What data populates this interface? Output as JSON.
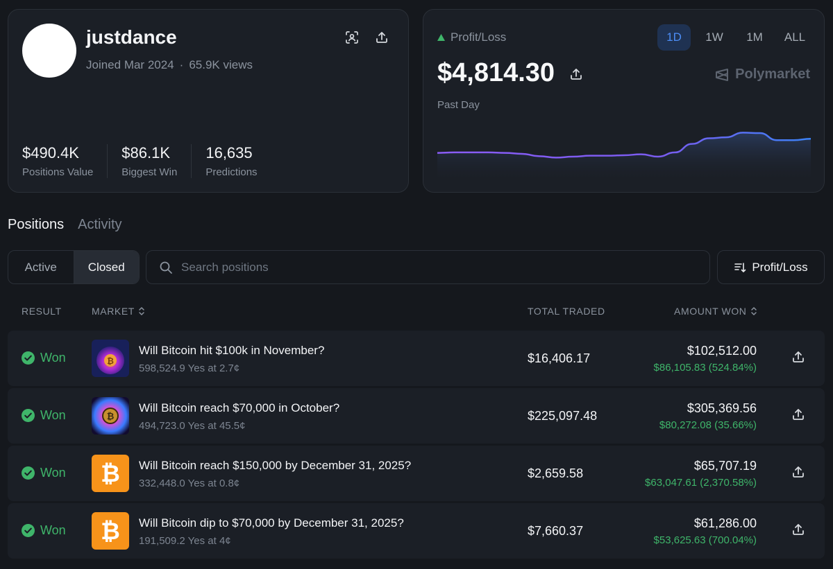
{
  "profile": {
    "username": "justdance",
    "joined": "Joined Mar 2024",
    "separator": "·",
    "views": "65.9K views",
    "stats": [
      {
        "value": "$490.4K",
        "label": "Positions Value"
      },
      {
        "value": "$86.1K",
        "label": "Biggest Win"
      },
      {
        "value": "16,635",
        "label": "Predictions"
      }
    ]
  },
  "pnl": {
    "label": "Profit/Loss",
    "value": "$4,814.30",
    "period": "Past Day",
    "brand": "Polymarket",
    "ranges": [
      "1D",
      "1W",
      "1M",
      "ALL"
    ],
    "active_range": "1D",
    "chart_data": {
      "type": "area",
      "y": [
        0.55,
        0.56,
        0.56,
        0.56,
        0.55,
        0.53,
        0.48,
        0.45,
        0.47,
        0.49,
        0.49,
        0.5,
        0.52,
        0.47,
        0.56,
        0.74,
        0.86,
        0.88,
        0.98,
        0.97,
        0.82,
        0.82,
        0.85
      ],
      "color_start": "#8a5cf6",
      "color_end": "#3b82f6"
    }
  },
  "tabs": [
    "Positions",
    "Activity"
  ],
  "filter": {
    "active": "Active",
    "closed": "Closed"
  },
  "search": {
    "placeholder": "Search positions"
  },
  "sort": {
    "label": "Profit/Loss"
  },
  "table": {
    "headers": {
      "result": "RESULT",
      "market": "MARKET",
      "traded": "TOTAL TRADED",
      "won": "AMOUNT WON"
    },
    "rows": [
      {
        "result": "Won",
        "title": "Will Bitcoin hit $100k in November?",
        "sub": "598,524.9 Yes at 2.7¢",
        "traded": "$16,406.17",
        "won": "$102,512.00",
        "gain": "$86,105.83 (524.84%)",
        "thumb": "orb"
      },
      {
        "result": "Won",
        "title": "Will Bitcoin reach $70,000 in October?",
        "sub": "494,723.0 Yes at 45.5¢",
        "traded": "$225,097.48",
        "won": "$305,369.56",
        "gain": "$80,272.08 (35.66%)",
        "thumb": "burst"
      },
      {
        "result": "Won",
        "title": "Will Bitcoin reach $150,000 by December 31, 2025?",
        "sub": "332,448.0 Yes at 0.8¢",
        "traded": "$2,659.58",
        "won": "$65,707.19",
        "gain": "$63,047.61 (2,370.58%)",
        "thumb": "btc"
      },
      {
        "result": "Won",
        "title": "Will Bitcoin dip to $70,000 by December 31, 2025?",
        "sub": "191,509.2 Yes at 4¢",
        "traded": "$7,660.37",
        "won": "$61,286.00",
        "gain": "$53,625.63 (700.04%)",
        "thumb": "btc"
      }
    ]
  },
  "icons": {
    "profile_actions": [
      "scan-icon",
      "share-icon"
    ],
    "pnl": "triangle-up-icon"
  },
  "colors": {
    "positive": "#3fb56a",
    "accent": "#4c8df6"
  }
}
